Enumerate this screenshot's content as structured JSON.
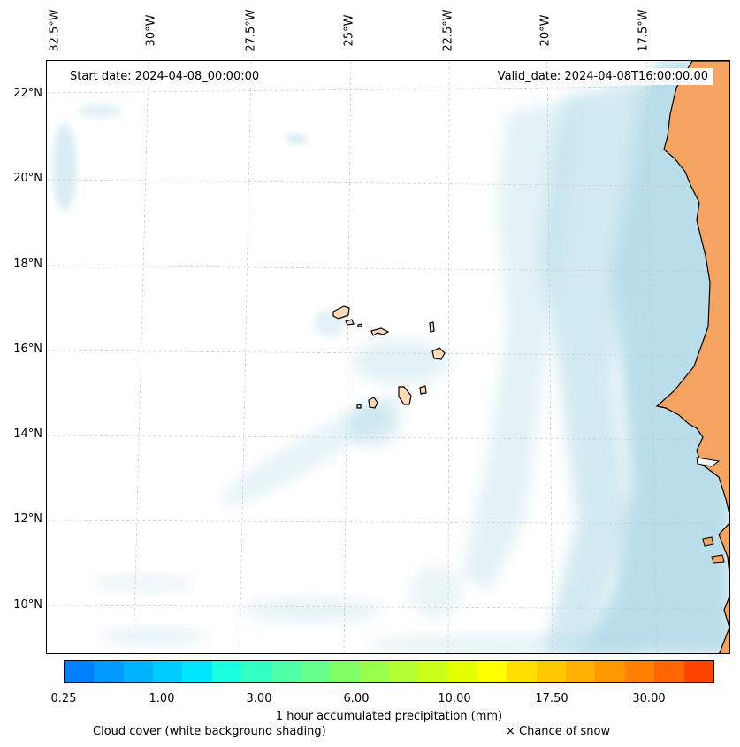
{
  "map": {
    "start_date_label": "Start date: 2024-04-08_00:00:00",
    "valid_date_label": "Valid_date: 2024-04-08T16:00:00.00",
    "lon_labels": [
      "32.5°W",
      "30°W",
      "27.5°W",
      "25°W",
      "22.5°W",
      "20°W",
      "17.5°W"
    ],
    "lat_labels": [
      "22°N",
      "20°N",
      "18°N",
      "16°N",
      "14°N",
      "12°N",
      "10°N"
    ],
    "colors": {
      "ocean": "#ffffff",
      "land": "#f4a460",
      "islands": "#ffdab9",
      "cloud": "#add8e6",
      "gridline": "#c8c8c8",
      "coastline": "#000000"
    },
    "features": [
      "Cape Verde islands",
      "West African coastline"
    ]
  },
  "colorbar": {
    "title": "1 hour accumulated precipitation (mm)",
    "ticks": [
      "0.25",
      "1.00",
      "3.00",
      "6.00",
      "10.00",
      "17.50",
      "30.00"
    ],
    "colors": [
      "#0080ff",
      "#0099ff",
      "#00b3ff",
      "#00ccff",
      "#00e6ff",
      "#1affe0",
      "#33ffc2",
      "#4dffa6",
      "#66ff8c",
      "#80ff66",
      "#99ff4d",
      "#b3ff33",
      "#ccff1a",
      "#e6ff00",
      "#ffff00",
      "#ffe000",
      "#ffc800",
      "#ffb000",
      "#ff9800",
      "#ff7f00",
      "#ff6600",
      "#ff4400"
    ]
  },
  "legend": {
    "cloud_label": "Cloud cover (white background shading)",
    "snow_label": "× Chance of snow"
  }
}
